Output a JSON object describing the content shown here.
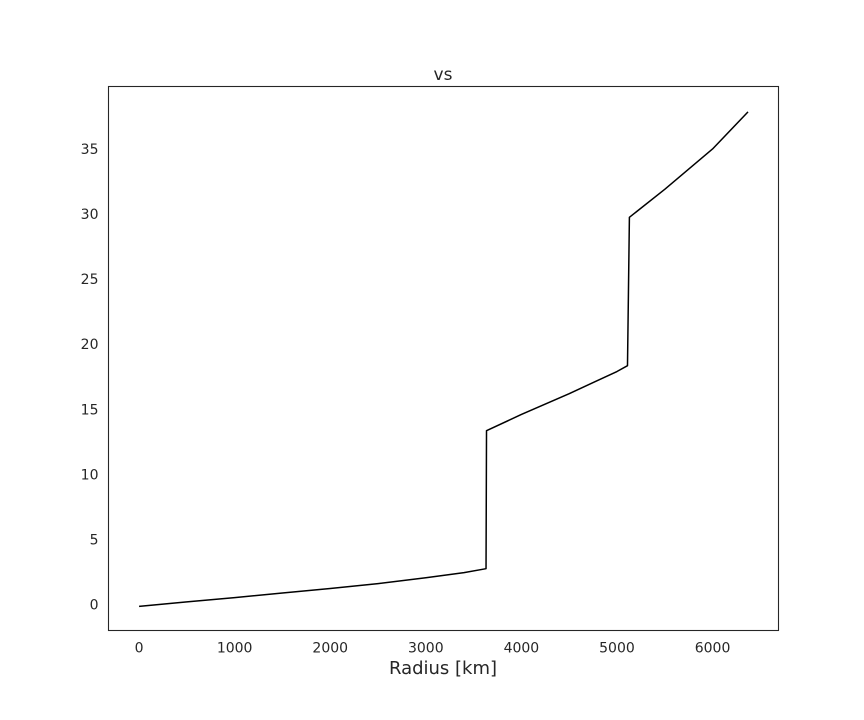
{
  "chart_data": {
    "type": "line",
    "title": "vs",
    "xlabel": "Radius [km]",
    "ylabel": "",
    "xlim": [
      -320,
      6690
    ],
    "ylim": [
      -2.0,
      39.8
    ],
    "xticks": [
      0,
      1000,
      2000,
      3000,
      4000,
      5000,
      6000
    ],
    "yticks": [
      0,
      5,
      10,
      15,
      20,
      25,
      30,
      35
    ],
    "grid": false,
    "line_color": "#000000",
    "series": [
      {
        "x": [
          0,
          500,
          1000,
          1500,
          2000,
          2500,
          3000,
          3400,
          3630,
          3635,
          4000,
          4500,
          5000,
          5110,
          5120,
          5130,
          5500,
          6000,
          6371
        ],
        "values": [
          -0.15,
          0.2,
          0.53,
          0.88,
          1.23,
          1.6,
          2.05,
          2.45,
          2.75,
          13.35,
          14.6,
          16.2,
          17.9,
          18.35,
          24.0,
          29.75,
          31.9,
          35.0,
          37.85
        ]
      }
    ]
  }
}
